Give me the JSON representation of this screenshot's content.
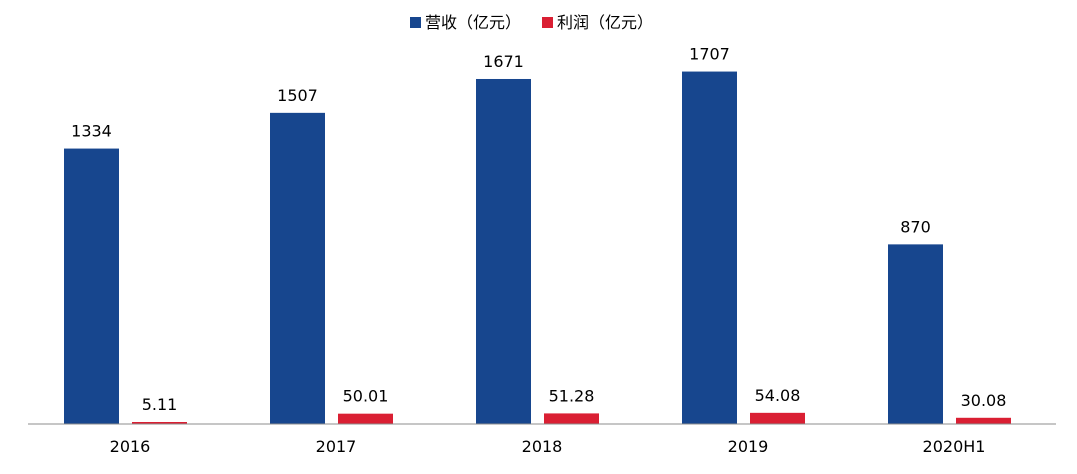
{
  "chart_data": {
    "type": "bar",
    "categories": [
      "2016",
      "2017",
      "2018",
      "2019",
      "2020H1"
    ],
    "series": [
      {
        "name": "营收（亿元）",
        "color": "#17468E",
        "values": [
          1334,
          1507,
          1671,
          1707,
          870
        ]
      },
      {
        "name": "利润（亿元）",
        "color": "#DA1F33",
        "values": [
          5.11,
          50.01,
          51.28,
          54.08,
          30.08
        ]
      }
    ],
    "value_labels": [
      [
        "1334",
        "1507",
        "1671",
        "1707",
        "870"
      ],
      [
        "5.11",
        "50.01",
        "51.28",
        "54.08",
        "30.08"
      ]
    ],
    "ylim": [
      0,
      1700
    ],
    "grid": false,
    "legend": "top-center",
    "title": "",
    "xlabel": "",
    "ylabel": ""
  }
}
